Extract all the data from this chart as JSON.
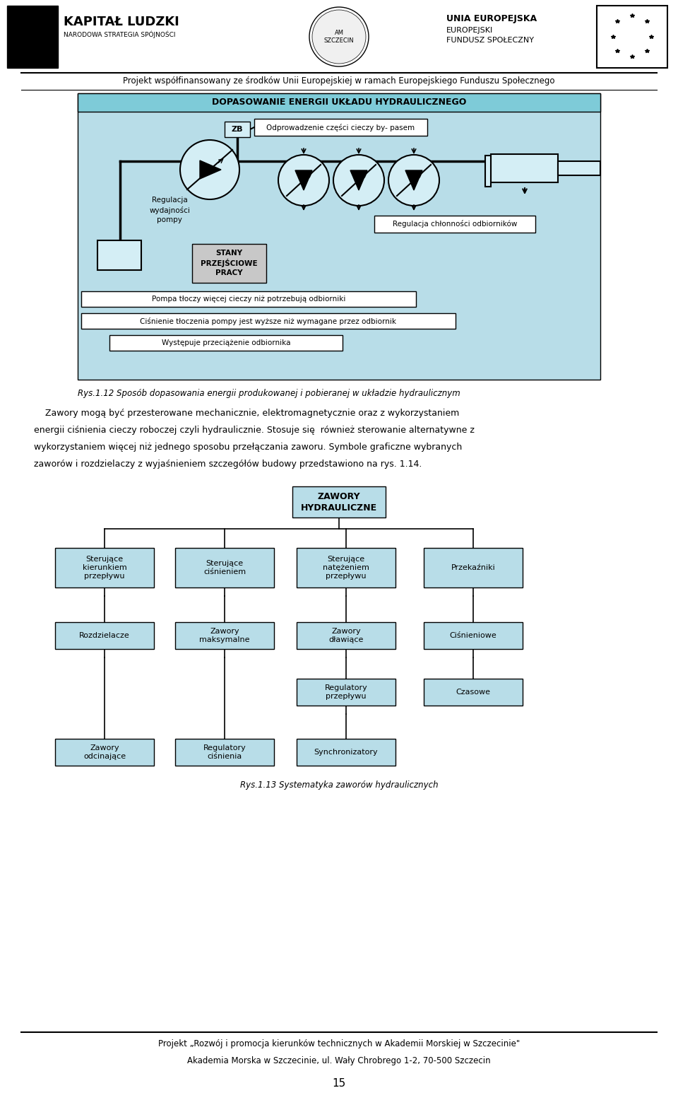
{
  "page_width": 9.6,
  "page_height": 15.63,
  "bg_color": "#ffffff",
  "top_text": "Projekt współfinansowany ze środków Unii Europejskiej w ramach Europejskiego Funduszu Społecznego",
  "diagram1_title": "DOPASOWANIE ENERGII UKŁADU HYDRAULICZNEGO",
  "box_light": "#b8dde8",
  "box_title_bg": "#7ecbd8",
  "body_rys112": "Rys.1.12 Sposób dopasowania energii produkowanej i pobieranej w układzie hydraulicznym",
  "body_para_lines": [
    "    Zawory mogą być przesterowane mechanicznie, elektromagnetycznie oraz z wykorzystaniem",
    "energii ciśnienia cieczy roboczej czyli hydraulicznie. Stosuje się  również sterowanie alternatywne z",
    "wykorzystaniem więcej niż jednego sposobu przełączania zaworu. Symbole graficzne wybranych",
    "zaworów i rozdzielaczy z wyjaśnieniem szczegółów budowy przedstawiono na rys. 1.14."
  ],
  "diagram2_title": "ZAWORY\nHYDRAULICZNE",
  "caption2": "Rys.1.13 Systematyka zaworów hydraulicznych",
  "footer_line1": "Projekt „Rozwój i promocja kierunków technicznych w Akademii Morskiej w Szczecinie\"",
  "footer_line2": "Akademia Morska w Szczecinie, ul. Wały Chrobrego 1-2, 70-500 Szczecin",
  "page_number": "15",
  "kl_title": "KAPITAŁ LUDZKI",
  "kl_subtitle": "NARODOWA STRATEGIA SPÓJNOŚCI",
  "eu_line1": "UNIA EUROPEJSKA",
  "eu_line2": "EUROPEJSKI",
  "eu_line3": "FUNDUSZ SPOŁECZNY",
  "d1_odprowadzenie": "Odprowadzenie części cieczy by- pasem",
  "d1_regulacja_wydajnosci": "Regulacja\nwydajności\npompy",
  "d1_regulacja_chlonnosci": "Regulacja chłonności odbiorników",
  "d1_stany": "STANY\nPRZEJŚCIOWE\nPRACY",
  "d1_info1": "Pompa tłoczy więcej cieczy niż potrzebują odbiorniki",
  "d1_info2": "Ciśnienie tłoczenia pompy jest wyższe niż wymagane przez odbiornik",
  "d1_info3": "Występuje przeciążenie odbiornika"
}
